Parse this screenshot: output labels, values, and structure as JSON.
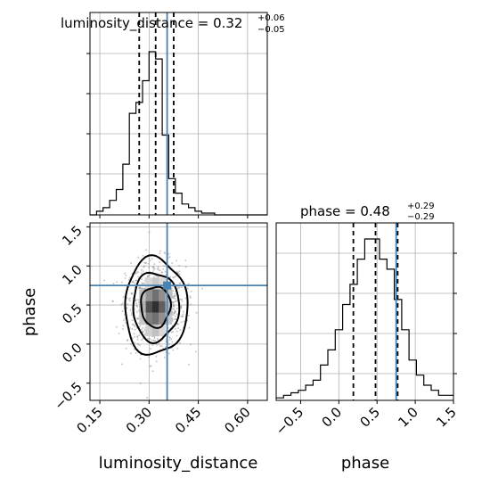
{
  "chart_data": {
    "type": "corner",
    "parameters": [
      "luminosity_distance",
      "phase"
    ],
    "titles": [
      {
        "param": "luminosity_distance",
        "median": "0.32",
        "plus": "+0.06",
        "minus": "−0.05"
      },
      {
        "param": "phase",
        "median": "0.48",
        "plus": "+0.29",
        "minus": "−0.29"
      }
    ],
    "truth": {
      "luminosity_distance": 0.355,
      "phase": 0.75
    },
    "quantiles": {
      "luminosity_distance": [
        0.27,
        0.32,
        0.375
      ],
      "phase": [
        0.19,
        0.48,
        0.77
      ]
    },
    "xlim": {
      "luminosity_distance": [
        0.12,
        0.66
      ],
      "phase": [
        -0.82,
        1.5
      ]
    },
    "ylim_2d": [
      -0.72,
      1.55
    ],
    "ticks": {
      "luminosity_distance": {
        "values": [
          0.15,
          0.3,
          0.45,
          0.6
        ],
        "labels": [
          "0.15",
          "0.30",
          "0.45",
          "0.60"
        ]
      },
      "phase_x": {
        "values": [
          -0.5,
          0.0,
          0.5,
          1.0,
          1.5
        ],
        "labels": [
          "−0.5",
          "0.0",
          "0.5",
          "1.0",
          "1.5"
        ]
      },
      "phase_y": {
        "values": [
          -0.5,
          0.0,
          0.5,
          1.0,
          1.5
        ],
        "labels": [
          "−0.5",
          "0.0",
          "0.5",
          "1.0",
          "1.5"
        ]
      }
    },
    "hist_luminosity_distance": {
      "bin_start": 0.12,
      "bin_width": 0.02,
      "counts": [
        0,
        1,
        2,
        4,
        7,
        14,
        28,
        31,
        37,
        45,
        43,
        22,
        10,
        6,
        3,
        2,
        1,
        0.5,
        0.5,
        0,
        0,
        0,
        0,
        0,
        0,
        0,
        0
      ]
    },
    "hist_phase": {
      "bin_start": -0.82,
      "bin_width": 0.0966,
      "counts": [
        0.5,
        1,
        1.5,
        2,
        3,
        4,
        7,
        10,
        14,
        19,
        23,
        28,
        32,
        32,
        28,
        26,
        20,
        14,
        8,
        5,
        3,
        2,
        1,
        1
      ]
    },
    "contours_2d": [
      {
        "center": [
          0.32,
          0.48
        ],
        "rx": 0.045,
        "ry": 0.26
      },
      {
        "center": [
          0.32,
          0.48
        ],
        "rx": 0.07,
        "ry": 0.44
      },
      {
        "center": [
          0.32,
          0.48
        ],
        "rx": 0.095,
        "ry": 0.62
      }
    ],
    "grid": true
  },
  "axis_labels": {
    "x1": "luminosity_distance",
    "x2": "phase",
    "y": "phase"
  },
  "colors": {
    "truth": "#4682b4",
    "hist": "#000000",
    "grid": "#b0b0b0"
  }
}
